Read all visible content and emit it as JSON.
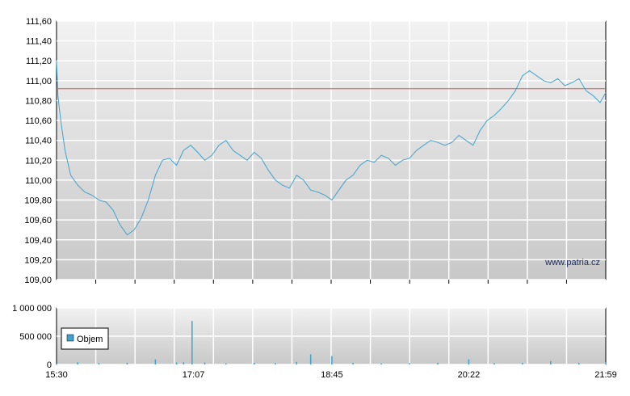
{
  "watermark": "www.patria.cz",
  "colors": {
    "price_line": "#3fa3d0",
    "reference_line": "#e05050",
    "volume_bar": "#3fa3d0",
    "grid": "#ffffff",
    "plot_bg_top": "#f2f2f2",
    "plot_bg_bottom": "#c8c8c8"
  },
  "chart_data": [
    {
      "type": "line",
      "name": "price",
      "y_ticks": [
        "111,60",
        "111,40",
        "111,20",
        "111,00",
        "110,80",
        "110,60",
        "110,40",
        "110,20",
        "110,00",
        "109,80",
        "109,60",
        "109,40",
        "109,20",
        "109,00"
      ],
      "ylim": [
        109.0,
        111.6
      ],
      "xlim": [
        "15:30",
        "21:59"
      ],
      "x_ticks": [
        "15:30",
        "17:07",
        "18:45",
        "20:22",
        "21:59"
      ],
      "reference_value": 110.92,
      "grid": true,
      "x": [
        "15:30",
        "15:31",
        "15:33",
        "15:36",
        "15:40",
        "15:45",
        "15:50",
        "15:55",
        "16:00",
        "16:05",
        "16:10",
        "16:15",
        "16:20",
        "16:25",
        "16:30",
        "16:35",
        "16:40",
        "16:45",
        "16:50",
        "16:55",
        "17:00",
        "17:05",
        "17:10",
        "17:15",
        "17:20",
        "17:25",
        "17:30",
        "17:35",
        "17:40",
        "17:45",
        "17:50",
        "17:55",
        "18:00",
        "18:05",
        "18:10",
        "18:15",
        "18:20",
        "18:25",
        "18:30",
        "18:35",
        "18:40",
        "18:45",
        "18:50",
        "18:55",
        "19:00",
        "19:05",
        "19:10",
        "19:15",
        "19:20",
        "19:25",
        "19:30",
        "19:35",
        "19:40",
        "19:45",
        "19:50",
        "19:55",
        "20:00",
        "20:05",
        "20:10",
        "20:15",
        "20:20",
        "20:25",
        "20:30",
        "20:35",
        "20:40",
        "20:45",
        "20:50",
        "20:55",
        "21:00",
        "21:05",
        "21:10",
        "21:15",
        "21:20",
        "21:25",
        "21:30",
        "21:35",
        "21:40",
        "21:45",
        "21:50",
        "21:55",
        "21:59"
      ],
      "values": [
        111.2,
        110.85,
        110.6,
        110.3,
        110.05,
        109.95,
        109.88,
        109.85,
        109.8,
        109.78,
        109.7,
        109.55,
        109.45,
        109.5,
        109.62,
        109.8,
        110.05,
        110.2,
        110.22,
        110.15,
        110.3,
        110.35,
        110.28,
        110.2,
        110.25,
        110.35,
        110.4,
        110.3,
        110.25,
        110.2,
        110.28,
        110.22,
        110.1,
        110.0,
        109.95,
        109.92,
        110.05,
        110.0,
        109.9,
        109.88,
        109.85,
        109.8,
        109.9,
        110.0,
        110.05,
        110.15,
        110.2,
        110.18,
        110.25,
        110.22,
        110.15,
        110.2,
        110.22,
        110.3,
        110.35,
        110.4,
        110.38,
        110.35,
        110.38,
        110.45,
        110.4,
        110.35,
        110.5,
        110.6,
        110.65,
        110.72,
        110.8,
        110.9,
        111.05,
        111.1,
        111.05,
        111.0,
        110.98,
        111.02,
        110.95,
        110.98,
        111.02,
        110.9,
        110.85,
        110.78,
        110.88
      ]
    },
    {
      "type": "bar",
      "name": "volume",
      "y_ticks": [
        "1 000 000",
        "500 000",
        "0"
      ],
      "ylim": [
        0,
        1000000
      ],
      "x_ticks": [
        "15:30",
        "17:07",
        "18:45",
        "20:22",
        "21:59"
      ],
      "legend": [
        "Objem"
      ],
      "legend_position": "bottom-left",
      "x": [
        "15:30",
        "15:45",
        "16:00",
        "16:20",
        "16:40",
        "16:55",
        "17:00",
        "17:06",
        "17:15",
        "17:30",
        "17:50",
        "18:05",
        "18:20",
        "18:30",
        "18:45",
        "19:00",
        "19:20",
        "19:40",
        "20:00",
        "20:22",
        "20:40",
        "21:00",
        "21:20",
        "21:40",
        "21:59"
      ],
      "values": [
        15000,
        40000,
        25000,
        30000,
        90000,
        35000,
        40000,
        770000,
        35000,
        20000,
        30000,
        25000,
        45000,
        180000,
        150000,
        30000,
        20000,
        25000,
        30000,
        90000,
        25000,
        30000,
        60000,
        30000,
        40000
      ]
    }
  ]
}
